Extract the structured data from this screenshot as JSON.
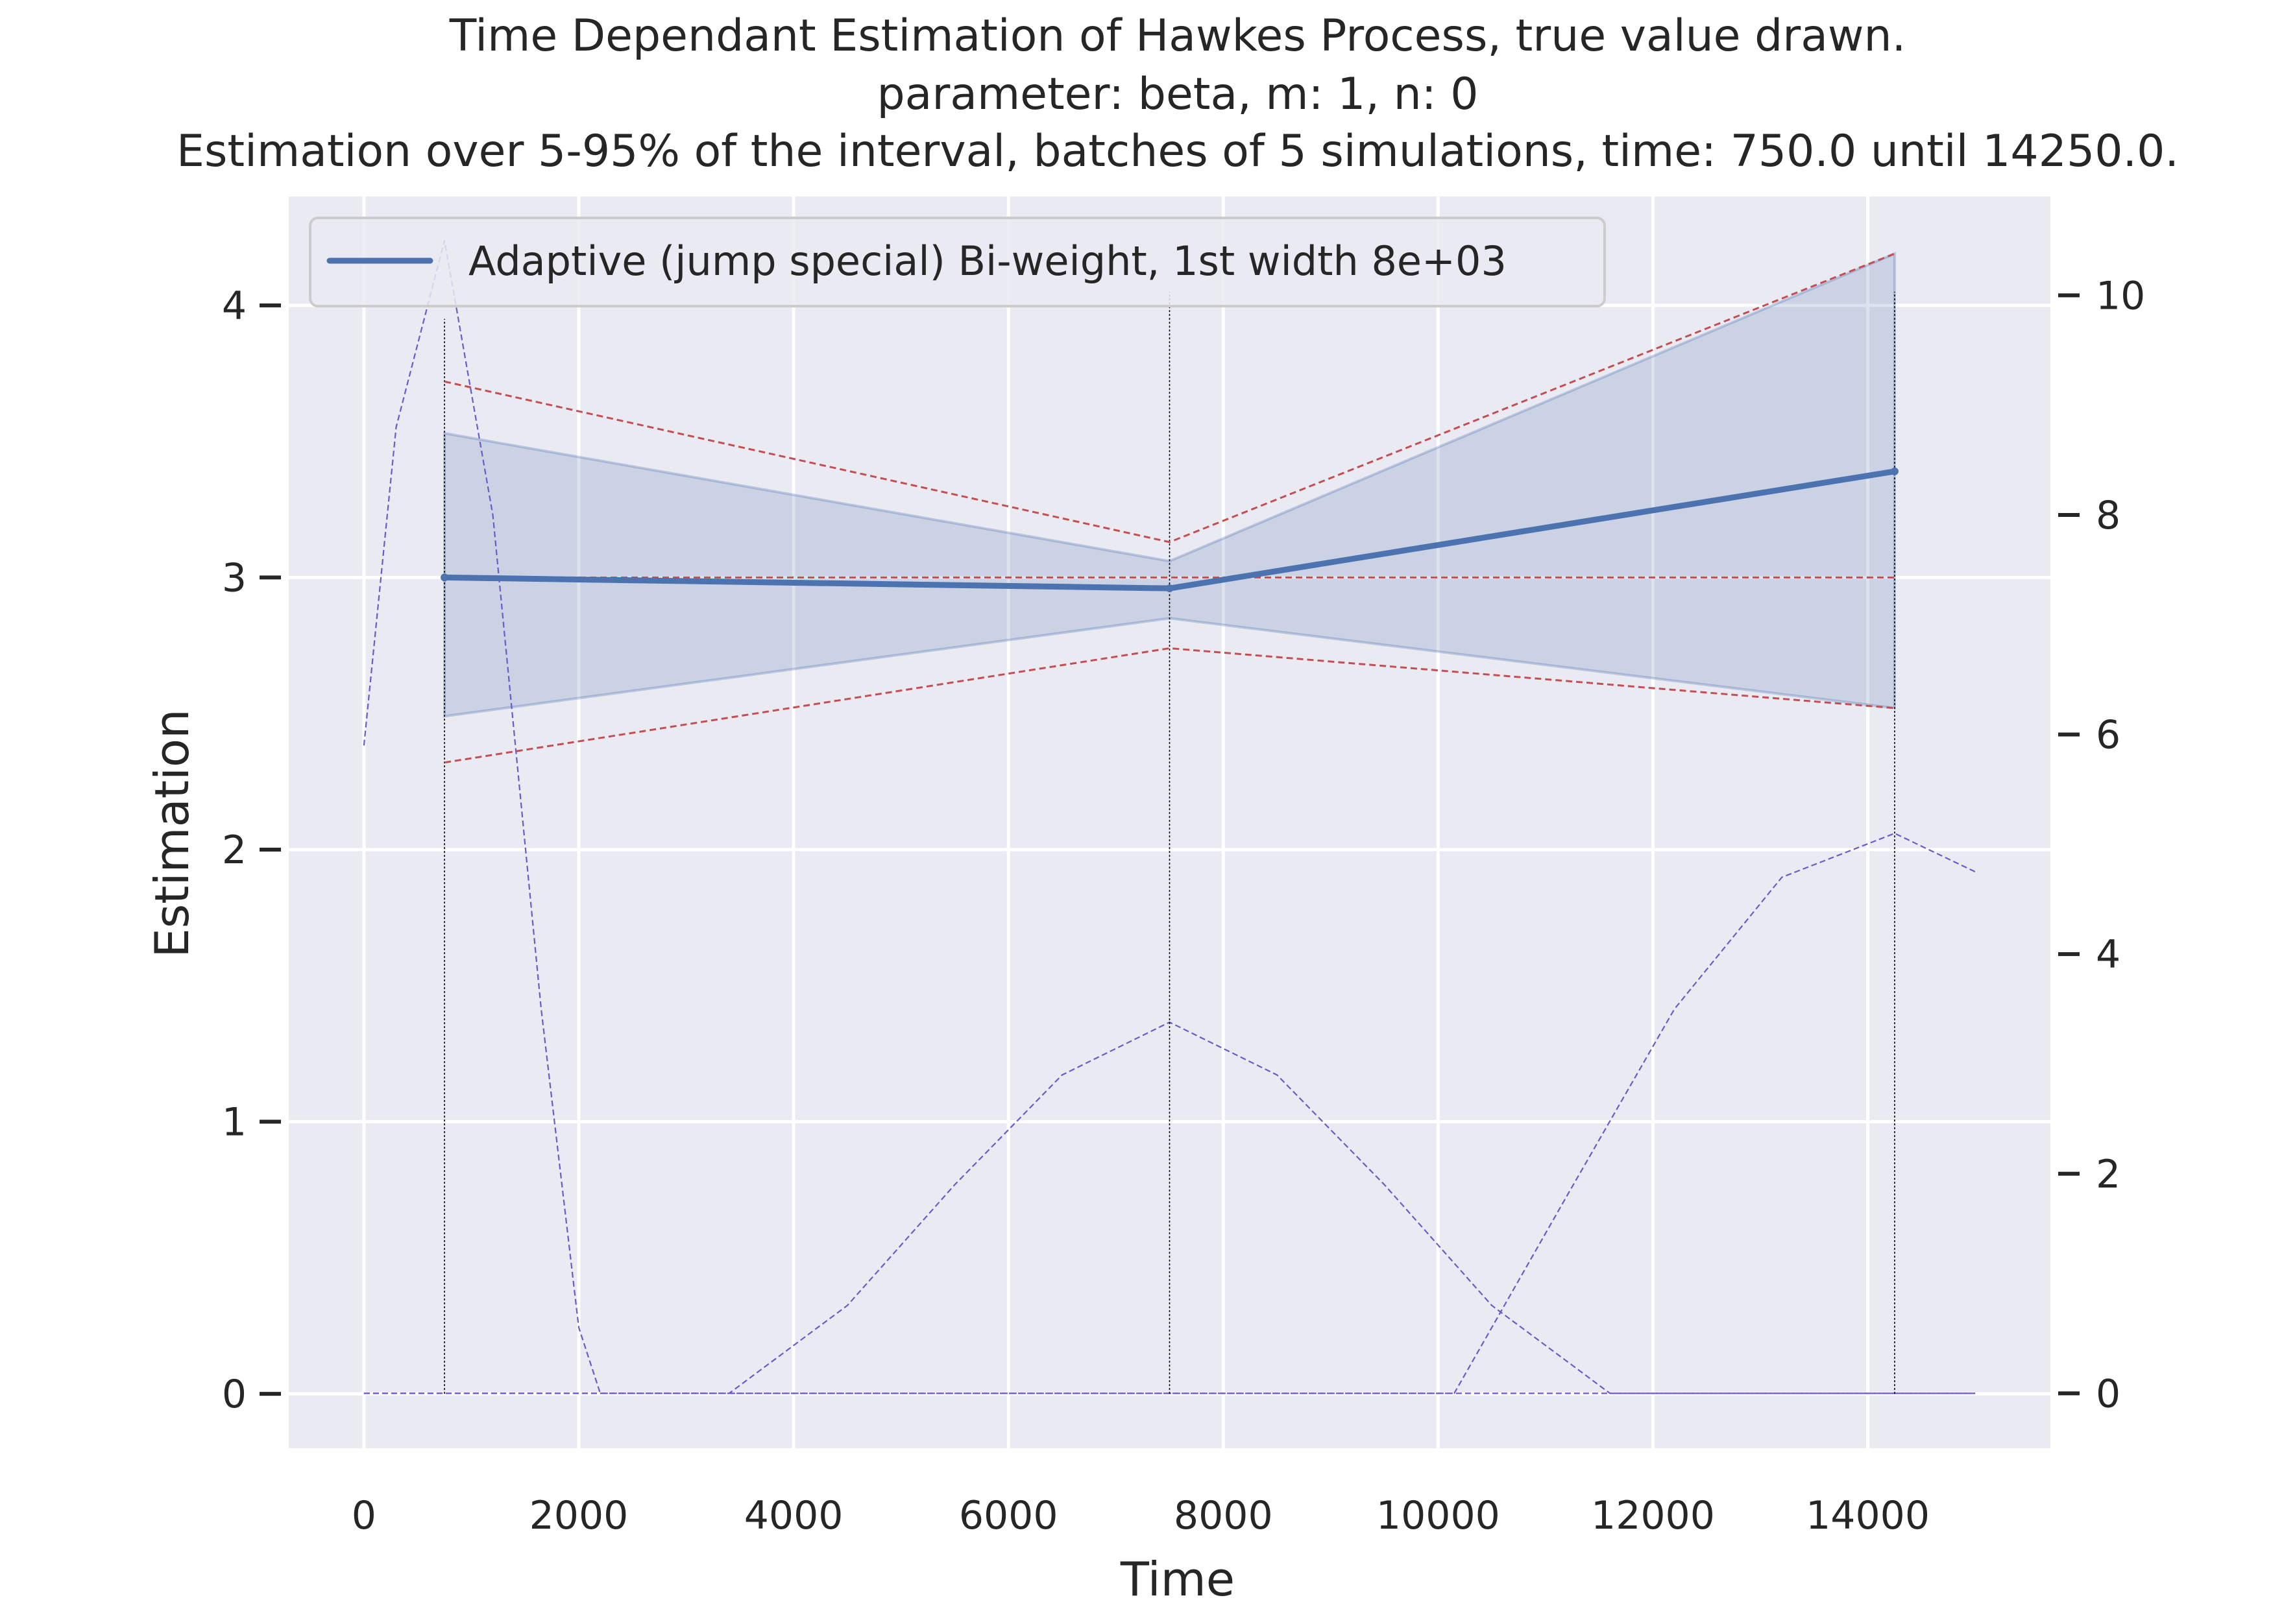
{
  "chart_data": {
    "type": "line",
    "title_lines": [
      "Time Dependant Estimation of Hawkes Process, true value drawn.",
      "parameter: beta, m: 1, n: 0",
      "Estimation over 5-95% of the interval, batches of 5 simulations, time: 750.0 until 14250.0."
    ],
    "xlabel": "Time",
    "ylabel": "Estimation",
    "xlim": [
      -700,
      15700
    ],
    "ylim": [
      -0.2,
      4.4
    ],
    "xticks": [
      0,
      2000,
      4000,
      6000,
      8000,
      10000,
      12000,
      14000
    ],
    "yticks": [
      0,
      1,
      2,
      3,
      4
    ],
    "y2lim": [
      -0.5,
      10.9
    ],
    "y2ticks": [
      0,
      2,
      4,
      6,
      8,
      10
    ],
    "grid": true,
    "legend_position": "upper-left",
    "colors": {
      "background": "#eaeaf2",
      "grid": "#ffffff",
      "estimate": "#4c72b0",
      "band": "#4c72b0",
      "true_and_quantiles": "#c44e52",
      "kernel": "#6a5acd",
      "vertical_markers": "#000000"
    },
    "series": [
      {
        "name": "Adaptive (jump special) Bi-weight, 1st width 8e+03",
        "role": "estimate",
        "x": [
          750,
          7500,
          14250
        ],
        "y": [
          3.0,
          2.96,
          3.39
        ]
      }
    ],
    "confidence_band": {
      "x": [
        750,
        7500,
        14250
      ],
      "lower": [
        2.49,
        2.85,
        2.52
      ],
      "upper": [
        3.53,
        3.06,
        4.19
      ]
    },
    "true_value": {
      "x": [
        750,
        14250
      ],
      "y": [
        3.0,
        3.0
      ]
    },
    "quantile_lines": {
      "x": [
        750,
        7500,
        14250
      ],
      "upper": [
        3.72,
        3.13,
        4.19
      ],
      "lower": [
        2.32,
        2.74,
        2.52
      ]
    },
    "vertical_markers": {
      "x": [
        750,
        7500,
        14250
      ],
      "ymax": [
        3.95,
        4.05,
        4.05
      ]
    },
    "kernels": [
      {
        "axis": "secondary",
        "x": [
          0,
          300,
          750,
          1200,
          1650,
          2000,
          2200,
          15000
        ],
        "y": [
          5.9,
          8.8,
          10.5,
          8.0,
          3.5,
          0.6,
          0,
          0
        ]
      },
      {
        "axis": "secondary",
        "x": [
          0,
          3400,
          4500,
          5500,
          6500,
          7500,
          8500,
          9500,
          10500,
          11600,
          15000
        ],
        "y": [
          0,
          0,
          0.8,
          1.9,
          2.9,
          3.38,
          2.9,
          1.9,
          0.8,
          0,
          0
        ]
      },
      {
        "axis": "secondary",
        "x": [
          0,
          10150,
          11200,
          12200,
          13200,
          14250,
          15000
        ],
        "y": [
          0,
          0,
          1.8,
          3.5,
          4.7,
          5.1,
          4.75
        ]
      }
    ]
  }
}
